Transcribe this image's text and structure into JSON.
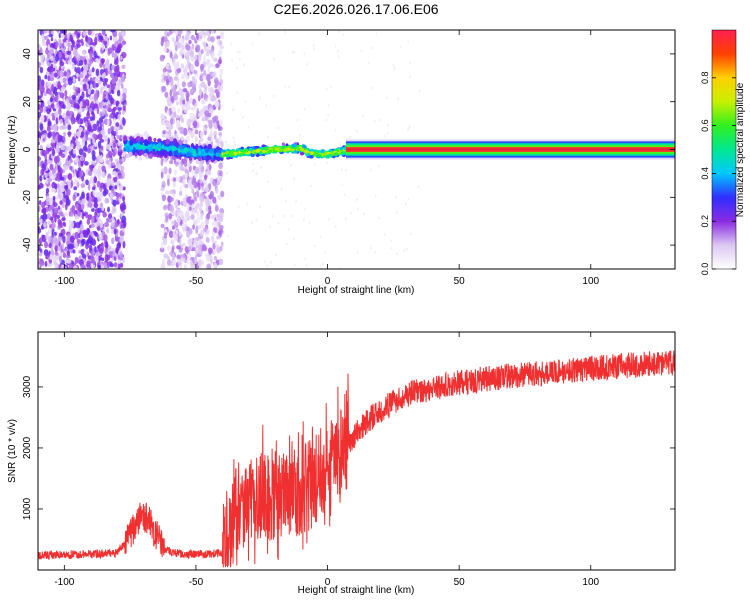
{
  "figure": {
    "title": "C2E6.2026.026.17.06.E06"
  },
  "colorbar": {
    "label": "Normalized spectral amplitude",
    "ticks": [
      "0.0",
      "0.2",
      "0.4",
      "0.6",
      "0.8"
    ],
    "tick_values": [
      0.0,
      0.2,
      0.4,
      0.6,
      0.8
    ],
    "range": [
      0,
      1
    ],
    "stops": [
      "#ffffff",
      "#dcc8f2",
      "#8a2be2",
      "#2f2fff",
      "#00c8ff",
      "#00e890",
      "#30f020",
      "#c8f000",
      "#ffd000",
      "#ff4000",
      "#ff2050"
    ]
  },
  "colors": {
    "snr_line": "#f03030",
    "axis": "#000000",
    "spectrogram_core": "#e02040",
    "spectrogram_edge": "#20c8c0"
  },
  "chart_data": [
    {
      "type": "heatmap",
      "title": "C2E6.2026.026.17.06.E06",
      "xlabel": "Height of straight line (km)",
      "ylabel": "Frequency (Hz)",
      "xlim": [
        -110,
        132
      ],
      "ylim": [
        -50,
        50
      ],
      "xticks": [
        -100,
        -50,
        0,
        50,
        100
      ],
      "xtick_labels": [
        "-100",
        "-50",
        "0",
        "50",
        "100"
      ],
      "yticks": [
        -40,
        -20,
        0,
        20,
        40
      ],
      "ytick_labels": [
        "-40",
        "-20",
        "0",
        "20",
        "40"
      ],
      "regions": [
        {
          "x": [
            -110,
            -77
          ],
          "description": "broadband noise",
          "amplitude": 0.15
        },
        {
          "x": [
            -63,
            -40
          ],
          "description": "broadband noise",
          "amplitude": 0.1
        },
        {
          "x": [
            -77,
            -40
          ],
          "description": "onset band",
          "amplitude": 0.35
        },
        {
          "x": [
            -40,
            7
          ],
          "description": "narrow band",
          "amplitude": 0.75
        },
        {
          "x": [
            7,
            132
          ],
          "description": "steady carrier",
          "amplitude": 0.95
        }
      ],
      "centerline": [
        {
          "x": -77,
          "f": 1.5
        },
        {
          "x": -60,
          "f": 0.5
        },
        {
          "x": -50,
          "f": -1.2
        },
        {
          "x": -40,
          "f": -2.0
        },
        {
          "x": -30,
          "f": -1.0
        },
        {
          "x": -20,
          "f": 0.0
        },
        {
          "x": -10,
          "f": 0.5
        },
        {
          "x": -7,
          "f": -1.5
        },
        {
          "x": 0,
          "f": -2.0
        },
        {
          "x": 7,
          "f": -0.5
        },
        {
          "x": 10,
          "f": 0.0
        },
        {
          "x": 132,
          "f": 0.0
        }
      ]
    },
    {
      "type": "line",
      "xlabel": "Height of straight line (km)",
      "ylabel": "SNR (10 * v/v)",
      "xlim": [
        -110,
        132
      ],
      "ylim": [
        0,
        3900
      ],
      "xticks": [
        -100,
        -50,
        0,
        50,
        100
      ],
      "xtick_labels": [
        "-100",
        "-50",
        "0",
        "50",
        "100"
      ],
      "yticks": [
        1000,
        2000,
        3000
      ],
      "ytick_labels": [
        "1000",
        "2000",
        "3000"
      ],
      "series": [
        {
          "name": "SNR",
          "x": [
            -110,
            -100,
            -90,
            -80,
            -76,
            -72,
            -70,
            -68,
            -66,
            -62,
            -58,
            -55,
            -50,
            -45,
            -40,
            -38,
            -34,
            -30,
            -28,
            -24,
            -20,
            -17,
            -14,
            -10,
            -6,
            -2,
            0,
            4,
            8,
            12,
            16,
            20,
            25,
            30,
            35,
            40,
            45,
            50,
            60,
            70,
            80,
            90,
            100,
            110,
            120,
            132
          ],
          "values": [
            240,
            250,
            260,
            280,
            500,
            820,
            900,
            800,
            650,
            350,
            280,
            260,
            260,
            260,
            280,
            620,
            1050,
            1150,
            1000,
            1250,
            1220,
            1200,
            1250,
            1300,
            1400,
            1620,
            1720,
            1920,
            2080,
            2300,
            2480,
            2600,
            2750,
            2880,
            2930,
            2980,
            3030,
            3070,
            3130,
            3180,
            3220,
            3260,
            3300,
            3340,
            3370,
            3400
          ]
        }
      ]
    }
  ]
}
